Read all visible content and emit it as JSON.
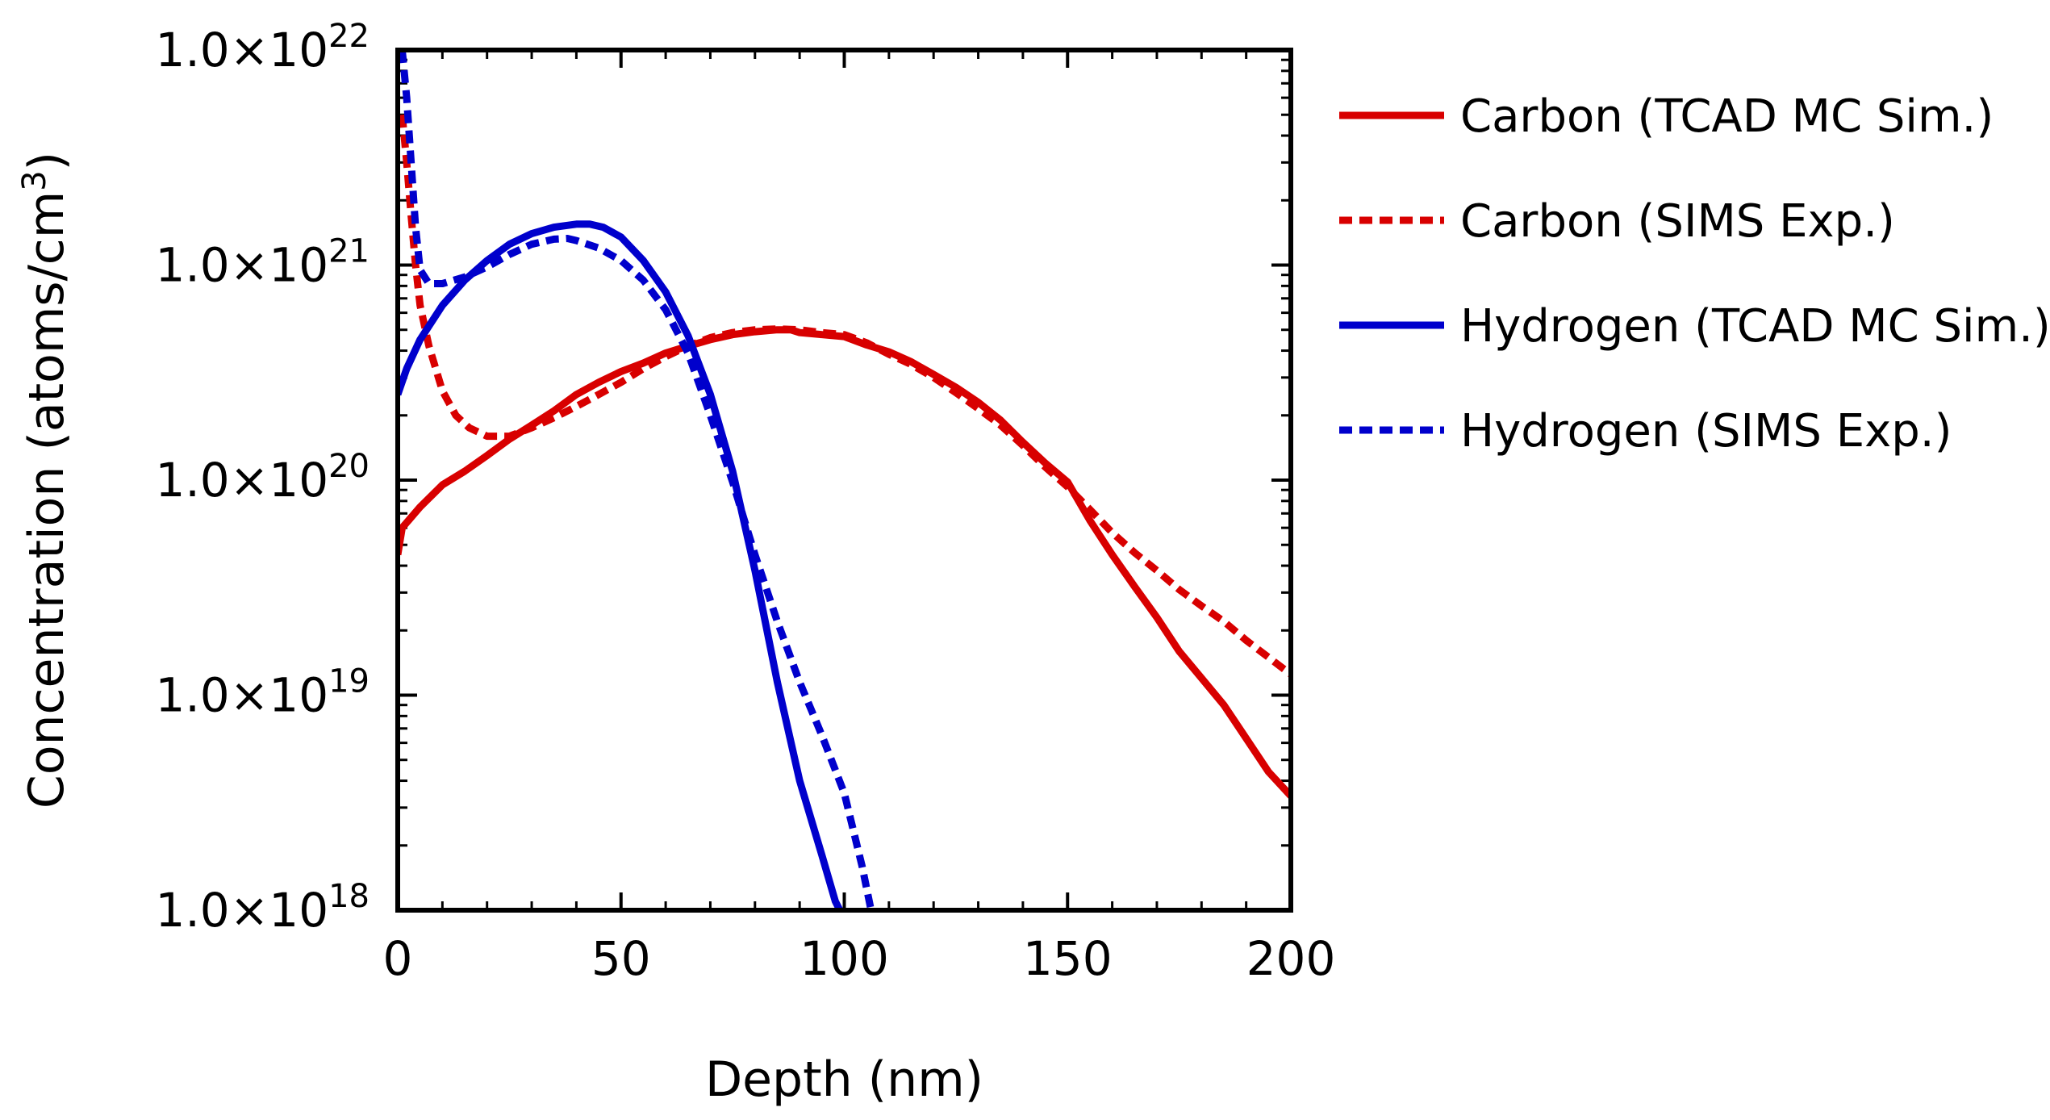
{
  "chart_data": {
    "type": "line",
    "title": "",
    "xlabel": "Depth (nm)",
    "ylabel_main": "Concentration (atoms/cm",
    "ylabel_sup": "3",
    "ylabel_close": ")",
    "xlim": [
      0,
      200
    ],
    "ylog": true,
    "ylim": [
      1e+18,
      1e+22
    ],
    "x_ticks": [
      {
        "value": 0,
        "label": "0"
      },
      {
        "value": 50,
        "label": "50"
      },
      {
        "value": 100,
        "label": "100"
      },
      {
        "value": 150,
        "label": "150"
      },
      {
        "value": 200,
        "label": "200"
      }
    ],
    "y_ticks": [
      {
        "value": 1e+18,
        "base": "1.0×10",
        "exp": "18"
      },
      {
        "value": 1e+19,
        "base": "1.0×10",
        "exp": "19"
      },
      {
        "value": 1e+20,
        "base": "1.0×10",
        "exp": "20"
      },
      {
        "value": 1e+21,
        "base": "1.0×10",
        "exp": "21"
      },
      {
        "value": 1e+22,
        "base": "1.0×10",
        "exp": "22"
      }
    ],
    "grid": false,
    "legend_position": "right",
    "series": [
      {
        "name": "Carbon (TCAD MC Sim.)",
        "color": "#d80000",
        "style": "solid",
        "points": [
          [
            0,
            4.5e+19
          ],
          [
            1,
            6e+19
          ],
          [
            5,
            7.5e+19
          ],
          [
            10,
            9.5e+19
          ],
          [
            15,
            1.1e+20
          ],
          [
            20,
            1.3e+20
          ],
          [
            25,
            1.55e+20
          ],
          [
            30,
            1.8e+20
          ],
          [
            35,
            2.1e+20
          ],
          [
            40,
            2.5e+20
          ],
          [
            45,
            2.85e+20
          ],
          [
            50,
            3.2e+20
          ],
          [
            55,
            3.5e+20
          ],
          [
            60,
            3.9e+20
          ],
          [
            65,
            4.2e+20
          ],
          [
            70,
            4.5e+20
          ],
          [
            75,
            4.75e+20
          ],
          [
            80,
            4.9e+20
          ],
          [
            85,
            5e+20
          ],
          [
            88,
            5e+20
          ],
          [
            90,
            4.85e+20
          ],
          [
            95,
            4.75e+20
          ],
          [
            100,
            4.65e+20
          ],
          [
            105,
            4.25e+20
          ],
          [
            110,
            3.95e+20
          ],
          [
            115,
            3.55e+20
          ],
          [
            120,
            3.1e+20
          ],
          [
            125,
            2.7e+20
          ],
          [
            130,
            2.3e+20
          ],
          [
            135,
            1.9e+20
          ],
          [
            140,
            1.5e+20
          ],
          [
            145,
            1.2e+20
          ],
          [
            150,
            9.8e+19
          ],
          [
            155,
            6.5e+19
          ],
          [
            160,
            4.5e+19
          ],
          [
            165,
            3.2e+19
          ],
          [
            170,
            2.3e+19
          ],
          [
            175,
            1.6e+19
          ],
          [
            180,
            1.2e+19
          ],
          [
            185,
            9e+18
          ],
          [
            190,
            6.3e+18
          ],
          [
            195,
            4.4e+18
          ],
          [
            200,
            3.4e+18
          ]
        ]
      },
      {
        "name": "Carbon (SIMS Exp.)",
        "color": "#d80000",
        "style": "dashed",
        "points": [
          [
            1,
            5e+21
          ],
          [
            2,
            3e+21
          ],
          [
            3,
            1.7e+21
          ],
          [
            4,
            1e+21
          ],
          [
            5,
            6.5e+20
          ],
          [
            7,
            4.2e+20
          ],
          [
            10,
            2.6e+20
          ],
          [
            13,
            2e+20
          ],
          [
            16,
            1.75e+20
          ],
          [
            20,
            1.6e+20
          ],
          [
            25,
            1.6e+20
          ],
          [
            30,
            1.75e+20
          ],
          [
            35,
            1.95e+20
          ],
          [
            40,
            2.2e+20
          ],
          [
            45,
            2.5e+20
          ],
          [
            50,
            2.85e+20
          ],
          [
            55,
            3.3e+20
          ],
          [
            60,
            3.75e+20
          ],
          [
            65,
            4.2e+20
          ],
          [
            70,
            4.6e+20
          ],
          [
            75,
            4.85e+20
          ],
          [
            80,
            5e+20
          ],
          [
            85,
            5.05e+20
          ],
          [
            90,
            5e+20
          ],
          [
            95,
            4.85e+20
          ],
          [
            100,
            4.75e+20
          ],
          [
            105,
            4.35e+20
          ],
          [
            110,
            3.85e+20
          ],
          [
            115,
            3.45e+20
          ],
          [
            120,
            3e+20
          ],
          [
            125,
            2.55e+20
          ],
          [
            130,
            2.15e+20
          ],
          [
            135,
            1.8e+20
          ],
          [
            140,
            1.45e+20
          ],
          [
            145,
            1.15e+20
          ],
          [
            150,
            9.3e+19
          ],
          [
            155,
            7.3e+19
          ],
          [
            160,
            5.7e+19
          ],
          [
            165,
            4.6e+19
          ],
          [
            170,
            3.8e+19
          ],
          [
            175,
            3.1e+19
          ],
          [
            180,
            2.6e+19
          ],
          [
            185,
            2.2e+19
          ],
          [
            190,
            1.8e+19
          ],
          [
            195,
            1.5e+19
          ],
          [
            200,
            1.25e+19
          ]
        ]
      },
      {
        "name": "Hydrogen (TCAD MC Sim.)",
        "color": "#0000cc",
        "style": "solid",
        "points": [
          [
            0,
            2.5e+20
          ],
          [
            2,
            3.3e+20
          ],
          [
            5,
            4.5e+20
          ],
          [
            10,
            6.5e+20
          ],
          [
            15,
            8.5e+20
          ],
          [
            20,
            1.05e+21
          ],
          [
            25,
            1.25e+21
          ],
          [
            30,
            1.4e+21
          ],
          [
            35,
            1.5e+21
          ],
          [
            40,
            1.55e+21
          ],
          [
            43,
            1.55e+21
          ],
          [
            46,
            1.5e+21
          ],
          [
            50,
            1.35e+21
          ],
          [
            55,
            1.05e+21
          ],
          [
            60,
            7.5e+20
          ],
          [
            65,
            4.7e+20
          ],
          [
            70,
            2.5e+20
          ],
          [
            75,
            1.1e+20
          ],
          [
            80,
            3.8e+19
          ],
          [
            85,
            1.15e+19
          ],
          [
            90,
            4e+18
          ],
          [
            95,
            1.8e+18
          ],
          [
            98,
            1.1e+18
          ],
          [
            99,
            1e+18
          ]
        ]
      },
      {
        "name": "Hydrogen (SIMS Exp.)",
        "color": "#0000cc",
        "style": "dashed",
        "points": [
          [
            1,
            1e+22
          ],
          [
            2,
            6e+21
          ],
          [
            3,
            3e+21
          ],
          [
            4,
            1.5e+21
          ],
          [
            5,
            9.5e+20
          ],
          [
            7,
            8.2e+20
          ],
          [
            10,
            8.2e+20
          ],
          [
            15,
            8.8e+20
          ],
          [
            20,
            9.8e+20
          ],
          [
            25,
            1.12e+21
          ],
          [
            30,
            1.25e+21
          ],
          [
            35,
            1.32e+21
          ],
          [
            38,
            1.33e+21
          ],
          [
            40,
            1.3e+21
          ],
          [
            45,
            1.2e+21
          ],
          [
            50,
            1.05e+21
          ],
          [
            55,
            8.5e+20
          ],
          [
            60,
            6.2e+20
          ],
          [
            65,
            3.9e+20
          ],
          [
            70,
            2e+20
          ],
          [
            75,
            9.8e+19
          ],
          [
            80,
            4.5e+19
          ],
          [
            85,
            2.2e+19
          ],
          [
            90,
            1.15e+19
          ],
          [
            95,
            6.5e+18
          ],
          [
            100,
            3.5e+18
          ],
          [
            104,
            1.6e+18
          ],
          [
            106,
            1e+18
          ]
        ]
      }
    ]
  }
}
